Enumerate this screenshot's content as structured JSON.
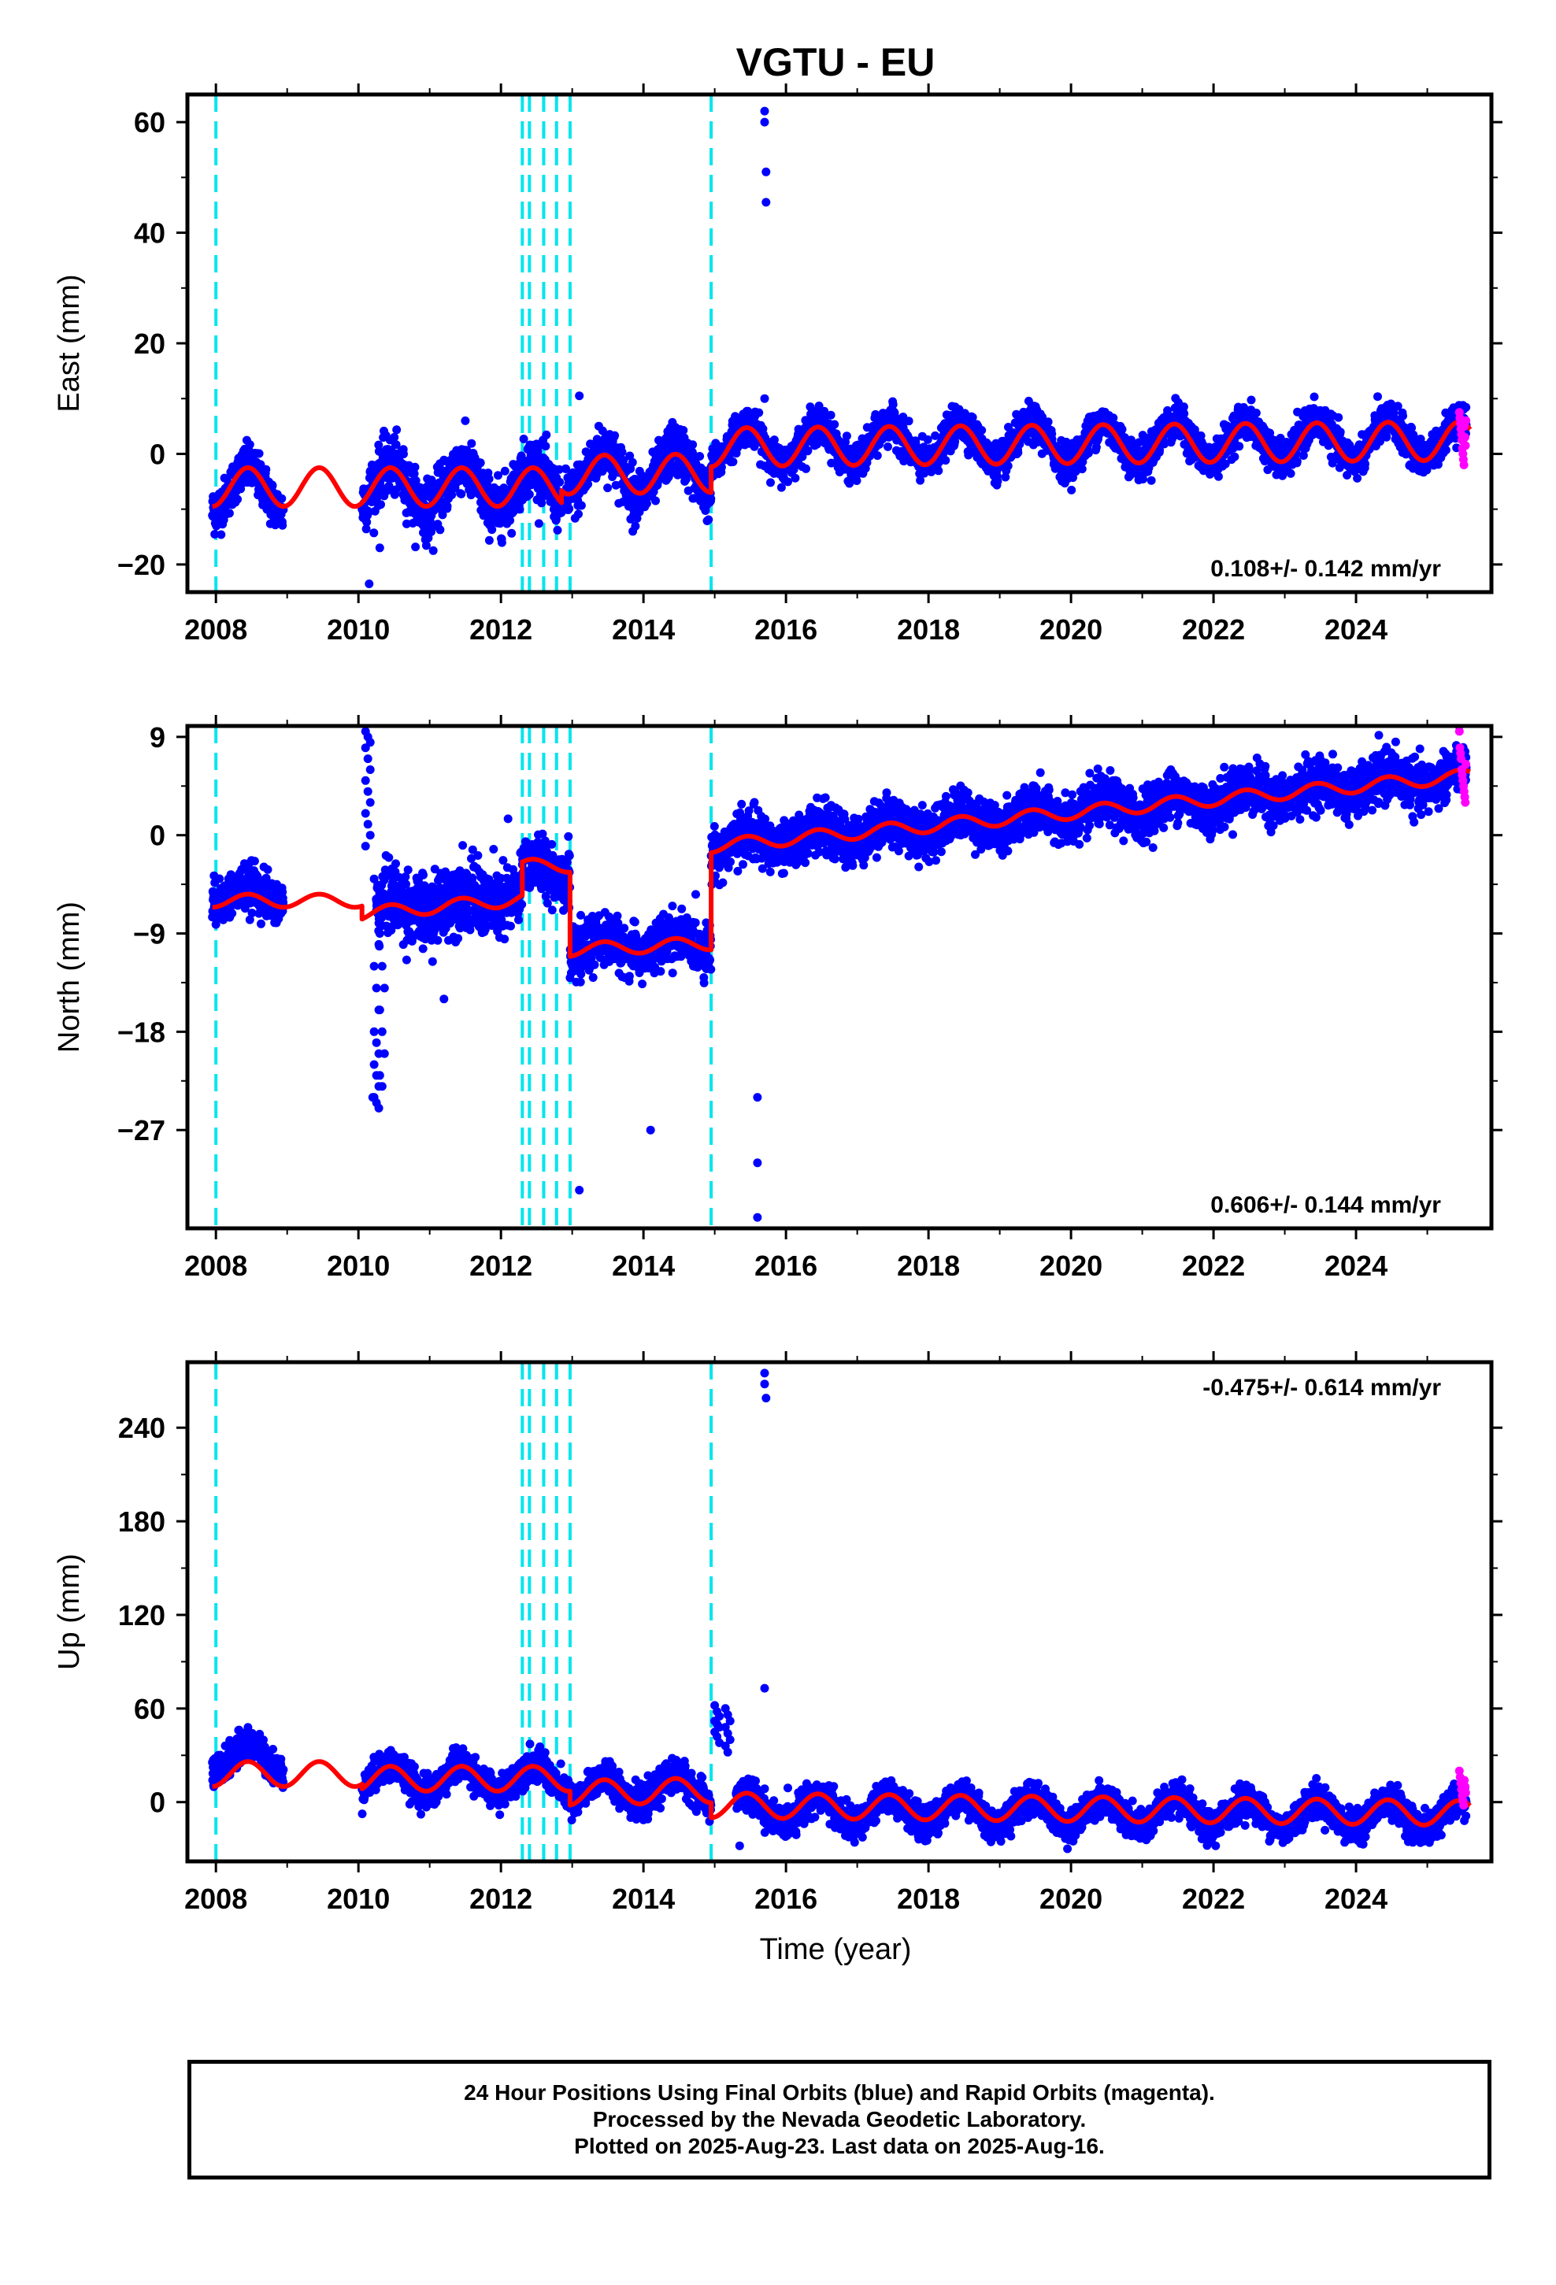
{
  "title": "VGTU - EU",
  "xlabel": "Time (year)",
  "colors": {
    "final_points": "#0000ff",
    "rapid_points": "#ff00ff",
    "model_line": "#ff0000",
    "event_lines": "#00e5ee",
    "frame": "#000000"
  },
  "footer": {
    "lines": [
      "24 Hour Positions Using Final Orbits (blue) and Rapid Orbits (magenta).",
      "Processed by the Nevada Geodetic Laboratory.",
      "Plotted on 2025-Aug-23. Last data on 2025-Aug-16."
    ]
  },
  "chart_data": [
    {
      "type": "scatter",
      "panel": "east",
      "ylabel": "East (mm)",
      "velocity_label": "0.108+/- 0.142 mm/yr",
      "velocity_position": "bottom-right",
      "xlim": [
        2007.6,
        2025.9
      ],
      "ylim": [
        -25,
        65
      ],
      "xticks": [
        2008,
        2010,
        2012,
        2014,
        2016,
        2018,
        2020,
        2022,
        2024
      ],
      "xtick_labels": [
        "2008",
        "2010",
        "2012",
        "2014",
        "2016",
        "2018",
        "2020",
        "2022",
        "2024"
      ],
      "yticks": [
        -20,
        0,
        20,
        40,
        60
      ],
      "ytick_labels": [
        "−20",
        "0",
        "20",
        "40",
        "60"
      ],
      "event_lines": [
        2008.0,
        2012.3,
        2012.4,
        2012.6,
        2012.78,
        2012.97,
        2014.95
      ],
      "segments": [
        {
          "start": 2007.95,
          "end": 2008.95,
          "offset": -6.5,
          "trend": 0,
          "amp": 4.0,
          "scatter": 2.0
        },
        {
          "start": 2010.05,
          "end": 2012.85,
          "offset": -6.0,
          "trend": 0,
          "amp": 4.0,
          "scatter": 2.5
        },
        {
          "start": 2012.9,
          "end": 2014.95,
          "offset": -3.5,
          "trend": 0.15,
          "amp": 4.0,
          "scatter": 2.3
        },
        {
          "start": 2014.95,
          "end": 2025.55,
          "offset": 1.5,
          "trend": 0.108,
          "amp": 3.5,
          "scatter": 1.6
        }
      ],
      "model_segments": [
        {
          "start": 2007.95,
          "end": 2010.05,
          "offset": -6.0,
          "trend": 0,
          "amp": 3.5
        },
        {
          "start": 2010.05,
          "end": 2012.85,
          "offset": -6.0,
          "trend": 0,
          "amp": 3.5
        },
        {
          "start": 2012.85,
          "end": 2014.95,
          "offset": -3.8,
          "trend": 0.15,
          "amp": 3.5
        },
        {
          "start": 2014.95,
          "end": 2025.6,
          "offset": 1.2,
          "trend": 0.108,
          "amp": 3.5
        }
      ],
      "outliers": [
        {
          "x": 2010.15,
          "y": -23.5
        },
        {
          "x": 2013.1,
          "y": 10.5
        },
        {
          "x": 2015.7,
          "y": 62
        },
        {
          "x": 2015.7,
          "y": 60
        },
        {
          "x": 2015.72,
          "y": 51
        },
        {
          "x": 2015.72,
          "y": 45.5
        },
        {
          "x": 2015.7,
          "y": 10
        },
        {
          "x": 2010.3,
          "y": -17
        },
        {
          "x": 2011.05,
          "y": -17.5
        },
        {
          "x": 2013.85,
          "y": -14
        }
      ],
      "rapid": {
        "start": 2025.45,
        "end": 2025.55,
        "values": [
          7.5,
          6.5,
          5.5,
          4.5,
          3.5,
          2.5,
          1,
          0,
          -1,
          -2,
          5,
          3,
          1.5,
          6
        ]
      }
    },
    {
      "type": "scatter",
      "panel": "north",
      "ylabel": "North (mm)",
      "velocity_label": "0.606+/- 0.144 mm/yr",
      "velocity_position": "bottom-right",
      "xlim": [
        2007.6,
        2025.9
      ],
      "ylim": [
        -36,
        10
      ],
      "xticks": [
        2008,
        2010,
        2012,
        2014,
        2016,
        2018,
        2020,
        2022,
        2024
      ],
      "xtick_labels": [
        "2008",
        "2010",
        "2012",
        "2014",
        "2016",
        "2018",
        "2020",
        "2022",
        "2024"
      ],
      "yticks": [
        -27,
        -18,
        -9,
        0,
        9
      ],
      "ytick_labels": [
        "−27",
        "−18",
        "−9",
        "0",
        "9"
      ],
      "event_lines": [
        2008.0,
        2012.3,
        2012.4,
        2012.6,
        2012.78,
        2012.97,
        2014.95
      ],
      "segments": [
        {
          "start": 2007.95,
          "end": 2008.95,
          "offset": -5.5,
          "trend": 0,
          "amp": 0.8,
          "scatter": 1.0
        },
        {
          "start": 2010.25,
          "end": 2012.3,
          "offset": -6.8,
          "trend": 0.6,
          "amp": 0.8,
          "scatter": 1.6
        },
        {
          "start": 2012.3,
          "end": 2012.97,
          "offset": -3.2,
          "trend": 0,
          "amp": 0.8,
          "scatter": 1.3
        },
        {
          "start": 2012.97,
          "end": 2014.95,
          "offset": -10.5,
          "trend": 0.3,
          "amp": 0.8,
          "scatter": 1.1
        },
        {
          "start": 2014.95,
          "end": 2025.55,
          "offset": -1.0,
          "trend": 0.606,
          "amp": 0.8,
          "scatter": 1.1
        }
      ],
      "model_segments": [
        {
          "start": 2007.95,
          "end": 2010.05,
          "offset": -6.0,
          "trend": 0,
          "amp": 0.6
        },
        {
          "start": 2010.05,
          "end": 2012.3,
          "offset": -7.2,
          "trend": 0.6,
          "amp": 0.6
        },
        {
          "start": 2012.3,
          "end": 2012.97,
          "offset": -2.8,
          "trend": 0,
          "amp": 0.6
        },
        {
          "start": 2012.97,
          "end": 2014.95,
          "offset": -10.5,
          "trend": 0.3,
          "amp": 0.6
        },
        {
          "start": 2014.95,
          "end": 2025.6,
          "offset": -1.0,
          "trend": 0.606,
          "amp": 0.6
        }
      ],
      "spikes": [
        {
          "x": 2010.1,
          "values": [
            9.5,
            9,
            8.5,
            8,
            7,
            6,
            5,
            4,
            3,
            2,
            1,
            0,
            -1
          ]
        },
        {
          "x": 2010.22,
          "values": [
            -4,
            -6,
            -10,
            -12,
            -14,
            -16,
            -18,
            -19,
            -20,
            -21,
            -22,
            -23,
            -24,
            -24.5,
            -25
          ]
        },
        {
          "x": 2010.3,
          "values": [
            -9,
            -12,
            -14,
            -16,
            -18,
            -20,
            -22,
            -23
          ]
        }
      ],
      "outliers": [
        {
          "x": 2013.1,
          "y": -32.5
        },
        {
          "x": 2014.1,
          "y": -27
        },
        {
          "x": 2015.6,
          "y": -24
        },
        {
          "x": 2015.6,
          "y": -30
        },
        {
          "x": 2015.6,
          "y": -35
        },
        {
          "x": 2010.2,
          "y": -24
        },
        {
          "x": 2011.2,
          "y": -15
        },
        {
          "x": 2012.1,
          "y": 1.5
        }
      ],
      "rapid": {
        "start": 2025.45,
        "end": 2025.55,
        "values": [
          9.5,
          8,
          7.5,
          7,
          6,
          5.5,
          5,
          4.5,
          4,
          3.5,
          3,
          6.5
        ]
      }
    },
    {
      "type": "scatter",
      "panel": "up",
      "ylabel": "Up (mm)",
      "velocity_label": "-0.475+/- 0.614 mm/yr",
      "velocity_position": "top-right",
      "xlim": [
        2007.6,
        2025.9
      ],
      "ylim": [
        -38,
        282
      ],
      "xticks": [
        2008,
        2010,
        2012,
        2014,
        2016,
        2018,
        2020,
        2022,
        2024
      ],
      "xtick_labels": [
        "2008",
        "2010",
        "2012",
        "2014",
        "2016",
        "2018",
        "2020",
        "2022",
        "2024"
      ],
      "yticks": [
        0,
        60,
        120,
        180,
        240
      ],
      "ytick_labels": [
        "0",
        "60",
        "120",
        "180",
        "240"
      ],
      "event_lines": [
        2008.0,
        2012.3,
        2012.4,
        2012.6,
        2012.78,
        2012.97,
        2014.95
      ],
      "segments": [
        {
          "start": 2007.95,
          "end": 2008.95,
          "offset": 28,
          "trend": 0,
          "amp": 9,
          "scatter": 5
        },
        {
          "start": 2010.05,
          "end": 2012.97,
          "offset": 15,
          "trend": 0,
          "amp": 9,
          "scatter": 5
        },
        {
          "start": 2012.97,
          "end": 2014.95,
          "offset": 7,
          "trend": 0.8,
          "amp": 9,
          "scatter": 5
        },
        {
          "start": 2015.3,
          "end": 2025.55,
          "offset": -4,
          "trend": -0.475,
          "amp": 9,
          "scatter": 5
        }
      ],
      "model_segments": [
        {
          "start": 2007.95,
          "end": 2010.05,
          "offset": 18,
          "trend": 0,
          "amp": 8
        },
        {
          "start": 2010.05,
          "end": 2012.97,
          "offset": 15,
          "trend": 0,
          "amp": 8
        },
        {
          "start": 2012.97,
          "end": 2014.95,
          "offset": 6,
          "trend": 0.8,
          "amp": 8
        },
        {
          "start": 2014.95,
          "end": 2025.6,
          "offset": -2,
          "trend": -0.475,
          "amp": 8
        }
      ],
      "spikes": [
        {
          "x": 2015.0,
          "values": [
            62,
            58,
            55,
            52,
            50,
            48,
            45,
            42,
            38
          ]
        },
        {
          "x": 2015.15,
          "values": [
            60,
            56,
            52,
            48,
            44,
            40,
            36,
            32
          ]
        }
      ],
      "outliers": [
        {
          "x": 2015.7,
          "y": 275
        },
        {
          "x": 2015.7,
          "y": 268
        },
        {
          "x": 2015.72,
          "y": 259
        },
        {
          "x": 2015.7,
          "y": 73
        },
        {
          "x": 2015.35,
          "y": -28
        }
      ],
      "rapid": {
        "start": 2025.45,
        "end": 2025.55,
        "values": [
          20,
          16,
          12,
          8,
          4,
          1,
          -2,
          14,
          10,
          6
        ]
      }
    }
  ]
}
